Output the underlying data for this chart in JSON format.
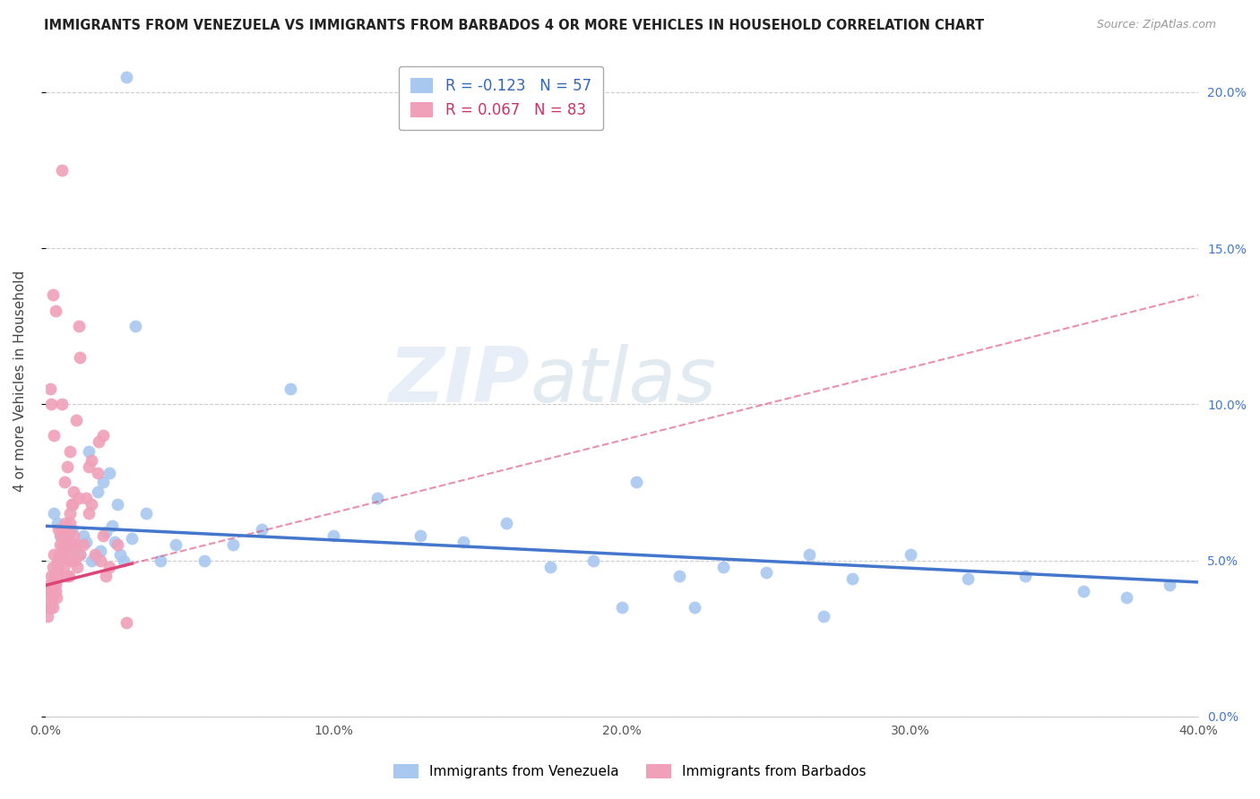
{
  "title": "IMMIGRANTS FROM VENEZUELA VS IMMIGRANTS FROM BARBADOS 4 OR MORE VEHICLES IN HOUSEHOLD CORRELATION CHART",
  "source": "Source: ZipAtlas.com",
  "ylabel": "4 or more Vehicles in Household",
  "xlim": [
    0.0,
    40.0
  ],
  "ylim": [
    0.0,
    21.5
  ],
  "legend_blue_r": "-0.123",
  "legend_blue_n": "57",
  "legend_pink_r": "0.067",
  "legend_pink_n": "83",
  "legend_blue_label": "Immigrants from Venezuela",
  "legend_pink_label": "Immigrants from Barbados",
  "blue_color": "#A8C8F0",
  "pink_color": "#F0A0B8",
  "trendline_blue_color": "#4477CC",
  "trendline_pink_color": "#DD4477",
  "watermark_zip": "ZIP",
  "watermark_atlas": "atlas",
  "blue_trendline_x": [
    0.0,
    40.0
  ],
  "blue_trendline_y": [
    6.1,
    4.3
  ],
  "pink_trendline_x": [
    0.0,
    40.0
  ],
  "pink_trendline_y": [
    4.2,
    13.5
  ],
  "blue_scatter_x": [
    0.3,
    0.4,
    0.5,
    0.6,
    0.7,
    0.8,
    0.9,
    1.0,
    1.1,
    1.2,
    1.3,
    1.4,
    1.5,
    1.6,
    1.7,
    1.8,
    1.9,
    2.0,
    2.1,
    2.2,
    2.3,
    2.4,
    2.5,
    2.6,
    2.7,
    2.8,
    3.0,
    3.1,
    3.5,
    4.0,
    4.5,
    5.5,
    6.5,
    7.5,
    8.5,
    10.0,
    11.5,
    13.0,
    14.5,
    16.0,
    17.5,
    19.0,
    20.5,
    22.0,
    23.5,
    25.0,
    26.5,
    28.0,
    30.0,
    32.0,
    34.0,
    36.0,
    37.5,
    39.0,
    20.0,
    22.5,
    27.0
  ],
  "blue_scatter_y": [
    6.5,
    6.2,
    5.8,
    5.7,
    5.5,
    5.9,
    6.0,
    5.4,
    5.3,
    5.2,
    5.8,
    5.6,
    8.5,
    5.0,
    5.1,
    7.2,
    5.3,
    7.5,
    5.9,
    7.8,
    6.1,
    5.6,
    6.8,
    5.2,
    5.0,
    20.5,
    5.7,
    12.5,
    6.5,
    5.0,
    5.5,
    5.0,
    5.5,
    6.0,
    10.5,
    5.8,
    7.0,
    5.8,
    5.6,
    6.2,
    4.8,
    5.0,
    7.5,
    4.5,
    4.8,
    4.6,
    5.2,
    4.4,
    5.2,
    4.4,
    4.5,
    4.0,
    3.8,
    4.2,
    3.5,
    3.5,
    3.2
  ],
  "pink_scatter_x": [
    0.05,
    0.08,
    0.1,
    0.12,
    0.14,
    0.16,
    0.18,
    0.2,
    0.22,
    0.24,
    0.26,
    0.28,
    0.3,
    0.32,
    0.34,
    0.36,
    0.38,
    0.4,
    0.42,
    0.44,
    0.46,
    0.48,
    0.5,
    0.52,
    0.54,
    0.56,
    0.58,
    0.6,
    0.62,
    0.64,
    0.66,
    0.68,
    0.7,
    0.72,
    0.74,
    0.76,
    0.78,
    0.8,
    0.82,
    0.84,
    0.86,
    0.88,
    0.9,
    0.92,
    0.94,
    0.96,
    0.98,
    1.0,
    1.05,
    1.1,
    1.15,
    1.2,
    1.3,
    1.4,
    1.5,
    1.6,
    1.7,
    1.8,
    1.9,
    2.0,
    2.1,
    2.2,
    2.5,
    2.8,
    0.15,
    0.25,
    0.35,
    0.45,
    0.55,
    0.65,
    0.75,
    0.85,
    0.95,
    1.05,
    1.15,
    1.6,
    2.0,
    1.85,
    1.5,
    1.2,
    0.55,
    0.3,
    0.2
  ],
  "pink_scatter_y": [
    3.5,
    3.2,
    3.8,
    4.0,
    4.2,
    3.5,
    4.0,
    4.5,
    3.8,
    3.5,
    4.8,
    4.2,
    5.2,
    4.5,
    4.0,
    4.2,
    3.8,
    5.0,
    4.8,
    4.5,
    5.2,
    5.0,
    5.5,
    5.8,
    4.5,
    5.2,
    6.0,
    5.5,
    4.8,
    5.2,
    5.5,
    5.8,
    6.2,
    5.5,
    6.0,
    4.5,
    5.8,
    4.5,
    5.2,
    6.2,
    6.5,
    5.0,
    5.5,
    6.8,
    5.0,
    7.2,
    5.8,
    5.0,
    5.5,
    4.8,
    7.0,
    5.2,
    5.5,
    7.0,
    6.5,
    6.8,
    5.2,
    7.8,
    5.0,
    5.8,
    4.5,
    4.8,
    5.5,
    3.0,
    10.5,
    13.5,
    13.0,
    6.0,
    10.0,
    7.5,
    8.0,
    8.5,
    6.8,
    9.5,
    12.5,
    8.2,
    9.0,
    8.8,
    8.0,
    11.5,
    17.5,
    9.0,
    10.0
  ]
}
